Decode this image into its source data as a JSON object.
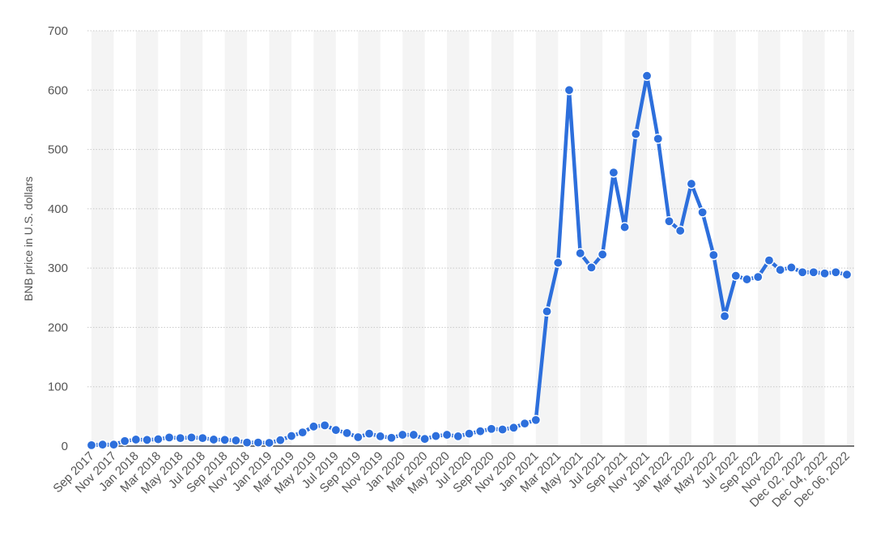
{
  "chart_data": {
    "type": "line",
    "title": "",
    "xlabel": "",
    "ylabel": "BNB price in U.S. dollars",
    "ylim": [
      0,
      700
    ],
    "yticks": [
      0,
      100,
      200,
      300,
      400,
      500,
      600,
      700
    ],
    "grid": true,
    "legend": "none",
    "series_color": "#2d6fdc",
    "band_color": "#f4f4f4",
    "gridline_color": "#c8c8c8",
    "categories": [
      "Sep 2017",
      "Oct 2017",
      "Nov 2017",
      "Dec 2017",
      "Jan 2018",
      "Feb 2018",
      "Mar 2018",
      "Apr 2018",
      "May 2018",
      "Jun 2018",
      "Jul 2018",
      "Aug 2018",
      "Sep 2018",
      "Oct 2018",
      "Nov 2018",
      "Dec 2018",
      "Jan 2019",
      "Feb 2019",
      "Mar 2019",
      "Apr 2019",
      "May 2019",
      "Jun 2019",
      "Jul 2019",
      "Aug 2019",
      "Sep 2019",
      "Oct 2019",
      "Nov 2019",
      "Dec 2019",
      "Jan 2020",
      "Feb 2020",
      "Mar 2020",
      "Apr 2020",
      "May 2020",
      "Jun 2020",
      "Jul 2020",
      "Aug 2020",
      "Sep 2020",
      "Oct 2020",
      "Nov 2020",
      "Dec 2020",
      "Jan 2021",
      "Feb 2021",
      "Mar 2021",
      "Apr 2021",
      "May 2021",
      "Jun 2021",
      "Jul 2021",
      "Aug 2021",
      "Sep 2021",
      "Oct 2021",
      "Nov 2021",
      "Dec 2021",
      "Jan 2022",
      "Feb 2022",
      "Mar 2022",
      "Apr 2022",
      "May 2022",
      "Jun 2022",
      "Jul 2022",
      "Aug 2022",
      "Sep 2022",
      "Oct 2022",
      "Nov 2022",
      "Dec 01, 2022",
      "Dec 02, 2022",
      "Dec 03, 2022",
      "Dec 04, 2022",
      "Dec 05, 2022",
      "Dec 06, 2022"
    ],
    "labeled_categories": [
      "Sep 2017",
      "Nov 2017",
      "Jan 2018",
      "Mar 2018",
      "May 2018",
      "Jul 2018",
      "Sep 2018",
      "Nov 2018",
      "Jan 2019",
      "Mar 2019",
      "May 2019",
      "Jul 2019",
      "Sep 2019",
      "Nov 2019",
      "Jan 2020",
      "Mar 2020",
      "May 2020",
      "Jul 2020",
      "Sep 2020",
      "Nov 2020",
      "Jan 2021",
      "Mar 2021",
      "May 2021",
      "Jul 2021",
      "Sep 2021",
      "Nov 2021",
      "Jan 2022",
      "Mar 2022",
      "May 2022",
      "Jul 2022",
      "Sep 2022",
      "Nov 2022",
      "Dec 02, 2022",
      "Dec 04, 2022",
      "Dec 06, 2022"
    ],
    "series": [
      {
        "values": [
          1.5,
          2.5,
          2.5,
          8.5,
          11,
          10.5,
          11.5,
          14.5,
          13.5,
          14.5,
          13.5,
          11,
          10.5,
          9.5,
          6,
          6,
          5.5,
          10,
          17,
          23,
          33,
          35,
          27,
          22,
          15,
          21,
          16.5,
          14,
          19,
          19,
          12,
          17,
          19,
          16.5,
          21,
          25,
          29,
          28,
          31,
          38,
          44,
          227,
          309,
          600,
          325,
          301,
          323,
          461,
          369,
          526,
          624,
          518,
          379,
          363,
          442,
          394,
          322,
          219,
          287,
          281,
          285,
          313,
          297,
          301,
          293,
          293,
          291,
          293,
          289
        ]
      }
    ]
  }
}
